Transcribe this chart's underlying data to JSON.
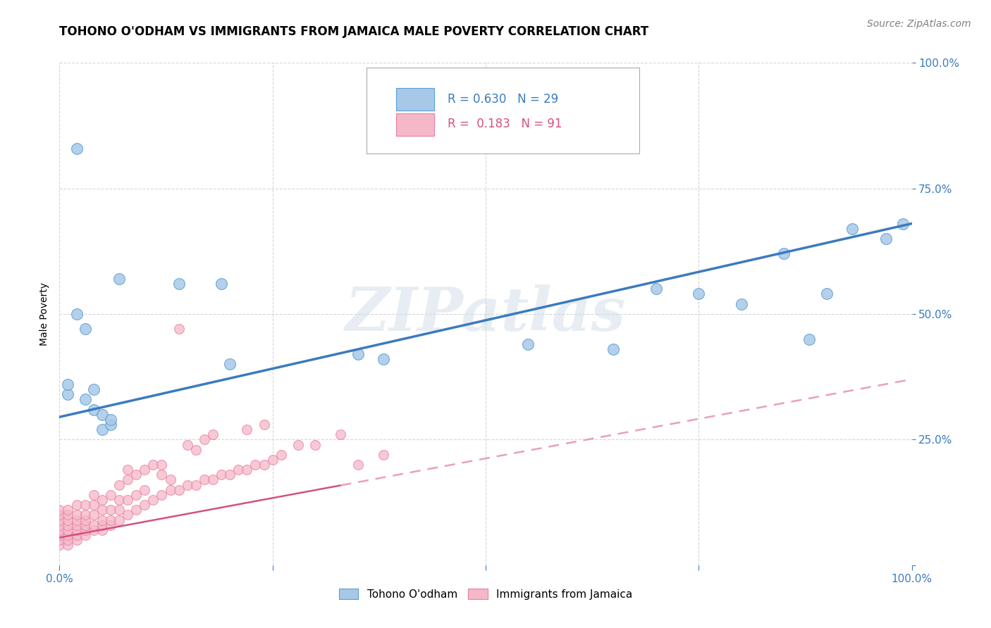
{
  "title": "TOHONO O'ODHAM VS IMMIGRANTS FROM JAMAICA MALE POVERTY CORRELATION CHART",
  "source": "Source: ZipAtlas.com",
  "ylabel": "Male Poverty",
  "xlim": [
    0,
    1
  ],
  "ylim": [
    0,
    1
  ],
  "xticks": [
    0.0,
    0.25,
    0.5,
    0.75,
    1.0
  ],
  "yticks": [
    0.0,
    0.25,
    0.5,
    0.75,
    1.0
  ],
  "xticklabels": [
    "0.0%",
    "",
    "",
    "",
    "100.0%"
  ],
  "yticklabels": [
    "",
    "25.0%",
    "50.0%",
    "75.0%",
    "100.0%"
  ],
  "background_color": "#ffffff",
  "grid_color": "#cccccc",
  "watermark": "ZIPatlas",
  "blue_R": 0.63,
  "blue_N": 29,
  "pink_R": 0.183,
  "pink_N": 91,
  "blue_fill_color": "#a8c8e8",
  "blue_edge_color": "#5a9fd4",
  "pink_fill_color": "#f5b8c8",
  "pink_edge_color": "#e880a0",
  "blue_line_color": "#3a7bbf",
  "pink_line_color": "#d45080",
  "pink_dash_color": "#e8a0b8",
  "blue_scatter_x": [
    0.07,
    0.02,
    0.03,
    0.03,
    0.04,
    0.04,
    0.05,
    0.05,
    0.06,
    0.06,
    0.02,
    0.14,
    0.19,
    0.2,
    0.35,
    0.38,
    0.55,
    0.65,
    0.7,
    0.75,
    0.8,
    0.85,
    0.88,
    0.9,
    0.93,
    0.97,
    0.99,
    0.01,
    0.01
  ],
  "blue_scatter_y": [
    0.57,
    0.5,
    0.47,
    0.33,
    0.35,
    0.31,
    0.3,
    0.27,
    0.28,
    0.29,
    0.83,
    0.56,
    0.56,
    0.4,
    0.42,
    0.41,
    0.44,
    0.43,
    0.55,
    0.54,
    0.52,
    0.62,
    0.45,
    0.54,
    0.67,
    0.65,
    0.68,
    0.34,
    0.36
  ],
  "pink_scatter_x": [
    0.0,
    0.0,
    0.0,
    0.0,
    0.0,
    0.0,
    0.0,
    0.0,
    0.01,
    0.01,
    0.01,
    0.01,
    0.01,
    0.01,
    0.01,
    0.01,
    0.02,
    0.02,
    0.02,
    0.02,
    0.02,
    0.02,
    0.02,
    0.03,
    0.03,
    0.03,
    0.03,
    0.03,
    0.03,
    0.04,
    0.04,
    0.04,
    0.04,
    0.04,
    0.05,
    0.05,
    0.05,
    0.05,
    0.05,
    0.06,
    0.06,
    0.06,
    0.06,
    0.07,
    0.07,
    0.07,
    0.07,
    0.08,
    0.08,
    0.08,
    0.09,
    0.09,
    0.1,
    0.1,
    0.11,
    0.12,
    0.12,
    0.13,
    0.13,
    0.14,
    0.15,
    0.16,
    0.17,
    0.18,
    0.19,
    0.2,
    0.21,
    0.22,
    0.23,
    0.24,
    0.25,
    0.26,
    0.28,
    0.3,
    0.33,
    0.35,
    0.38,
    0.14,
    0.15,
    0.16,
    0.17,
    0.18,
    0.08,
    0.09,
    0.1,
    0.11,
    0.12,
    0.22,
    0.24
  ],
  "pink_scatter_y": [
    0.04,
    0.05,
    0.06,
    0.07,
    0.08,
    0.09,
    0.1,
    0.11,
    0.04,
    0.05,
    0.06,
    0.07,
    0.08,
    0.09,
    0.1,
    0.11,
    0.05,
    0.06,
    0.07,
    0.08,
    0.09,
    0.1,
    0.12,
    0.06,
    0.07,
    0.08,
    0.09,
    0.1,
    0.12,
    0.07,
    0.08,
    0.1,
    0.12,
    0.14,
    0.07,
    0.08,
    0.09,
    0.11,
    0.13,
    0.08,
    0.09,
    0.11,
    0.14,
    0.09,
    0.11,
    0.13,
    0.16,
    0.1,
    0.13,
    0.17,
    0.11,
    0.14,
    0.12,
    0.15,
    0.13,
    0.14,
    0.18,
    0.15,
    0.17,
    0.15,
    0.16,
    0.16,
    0.17,
    0.17,
    0.18,
    0.18,
    0.19,
    0.19,
    0.2,
    0.2,
    0.21,
    0.22,
    0.24,
    0.24,
    0.26,
    0.2,
    0.22,
    0.47,
    0.24,
    0.23,
    0.25,
    0.26,
    0.19,
    0.18,
    0.19,
    0.2,
    0.2,
    0.27,
    0.28
  ],
  "blue_trend_x0": 0.0,
  "blue_trend_x1": 1.0,
  "blue_trend_y0": 0.295,
  "blue_trend_y1": 0.68,
  "pink_trend_solid_x0": 0.0,
  "pink_trend_solid_x1": 0.33,
  "pink_trend_dash_x0": 0.33,
  "pink_trend_dash_x1": 1.0,
  "pink_trend_y_at_0": 0.055,
  "pink_trend_y_at_1": 0.37,
  "legend_blue_label": "Tohono O'odham",
  "legend_pink_label": "Immigrants from Jamaica",
  "title_fontsize": 12,
  "axis_label_fontsize": 10,
  "tick_fontsize": 11,
  "legend_fontsize": 11,
  "source_fontsize": 10
}
